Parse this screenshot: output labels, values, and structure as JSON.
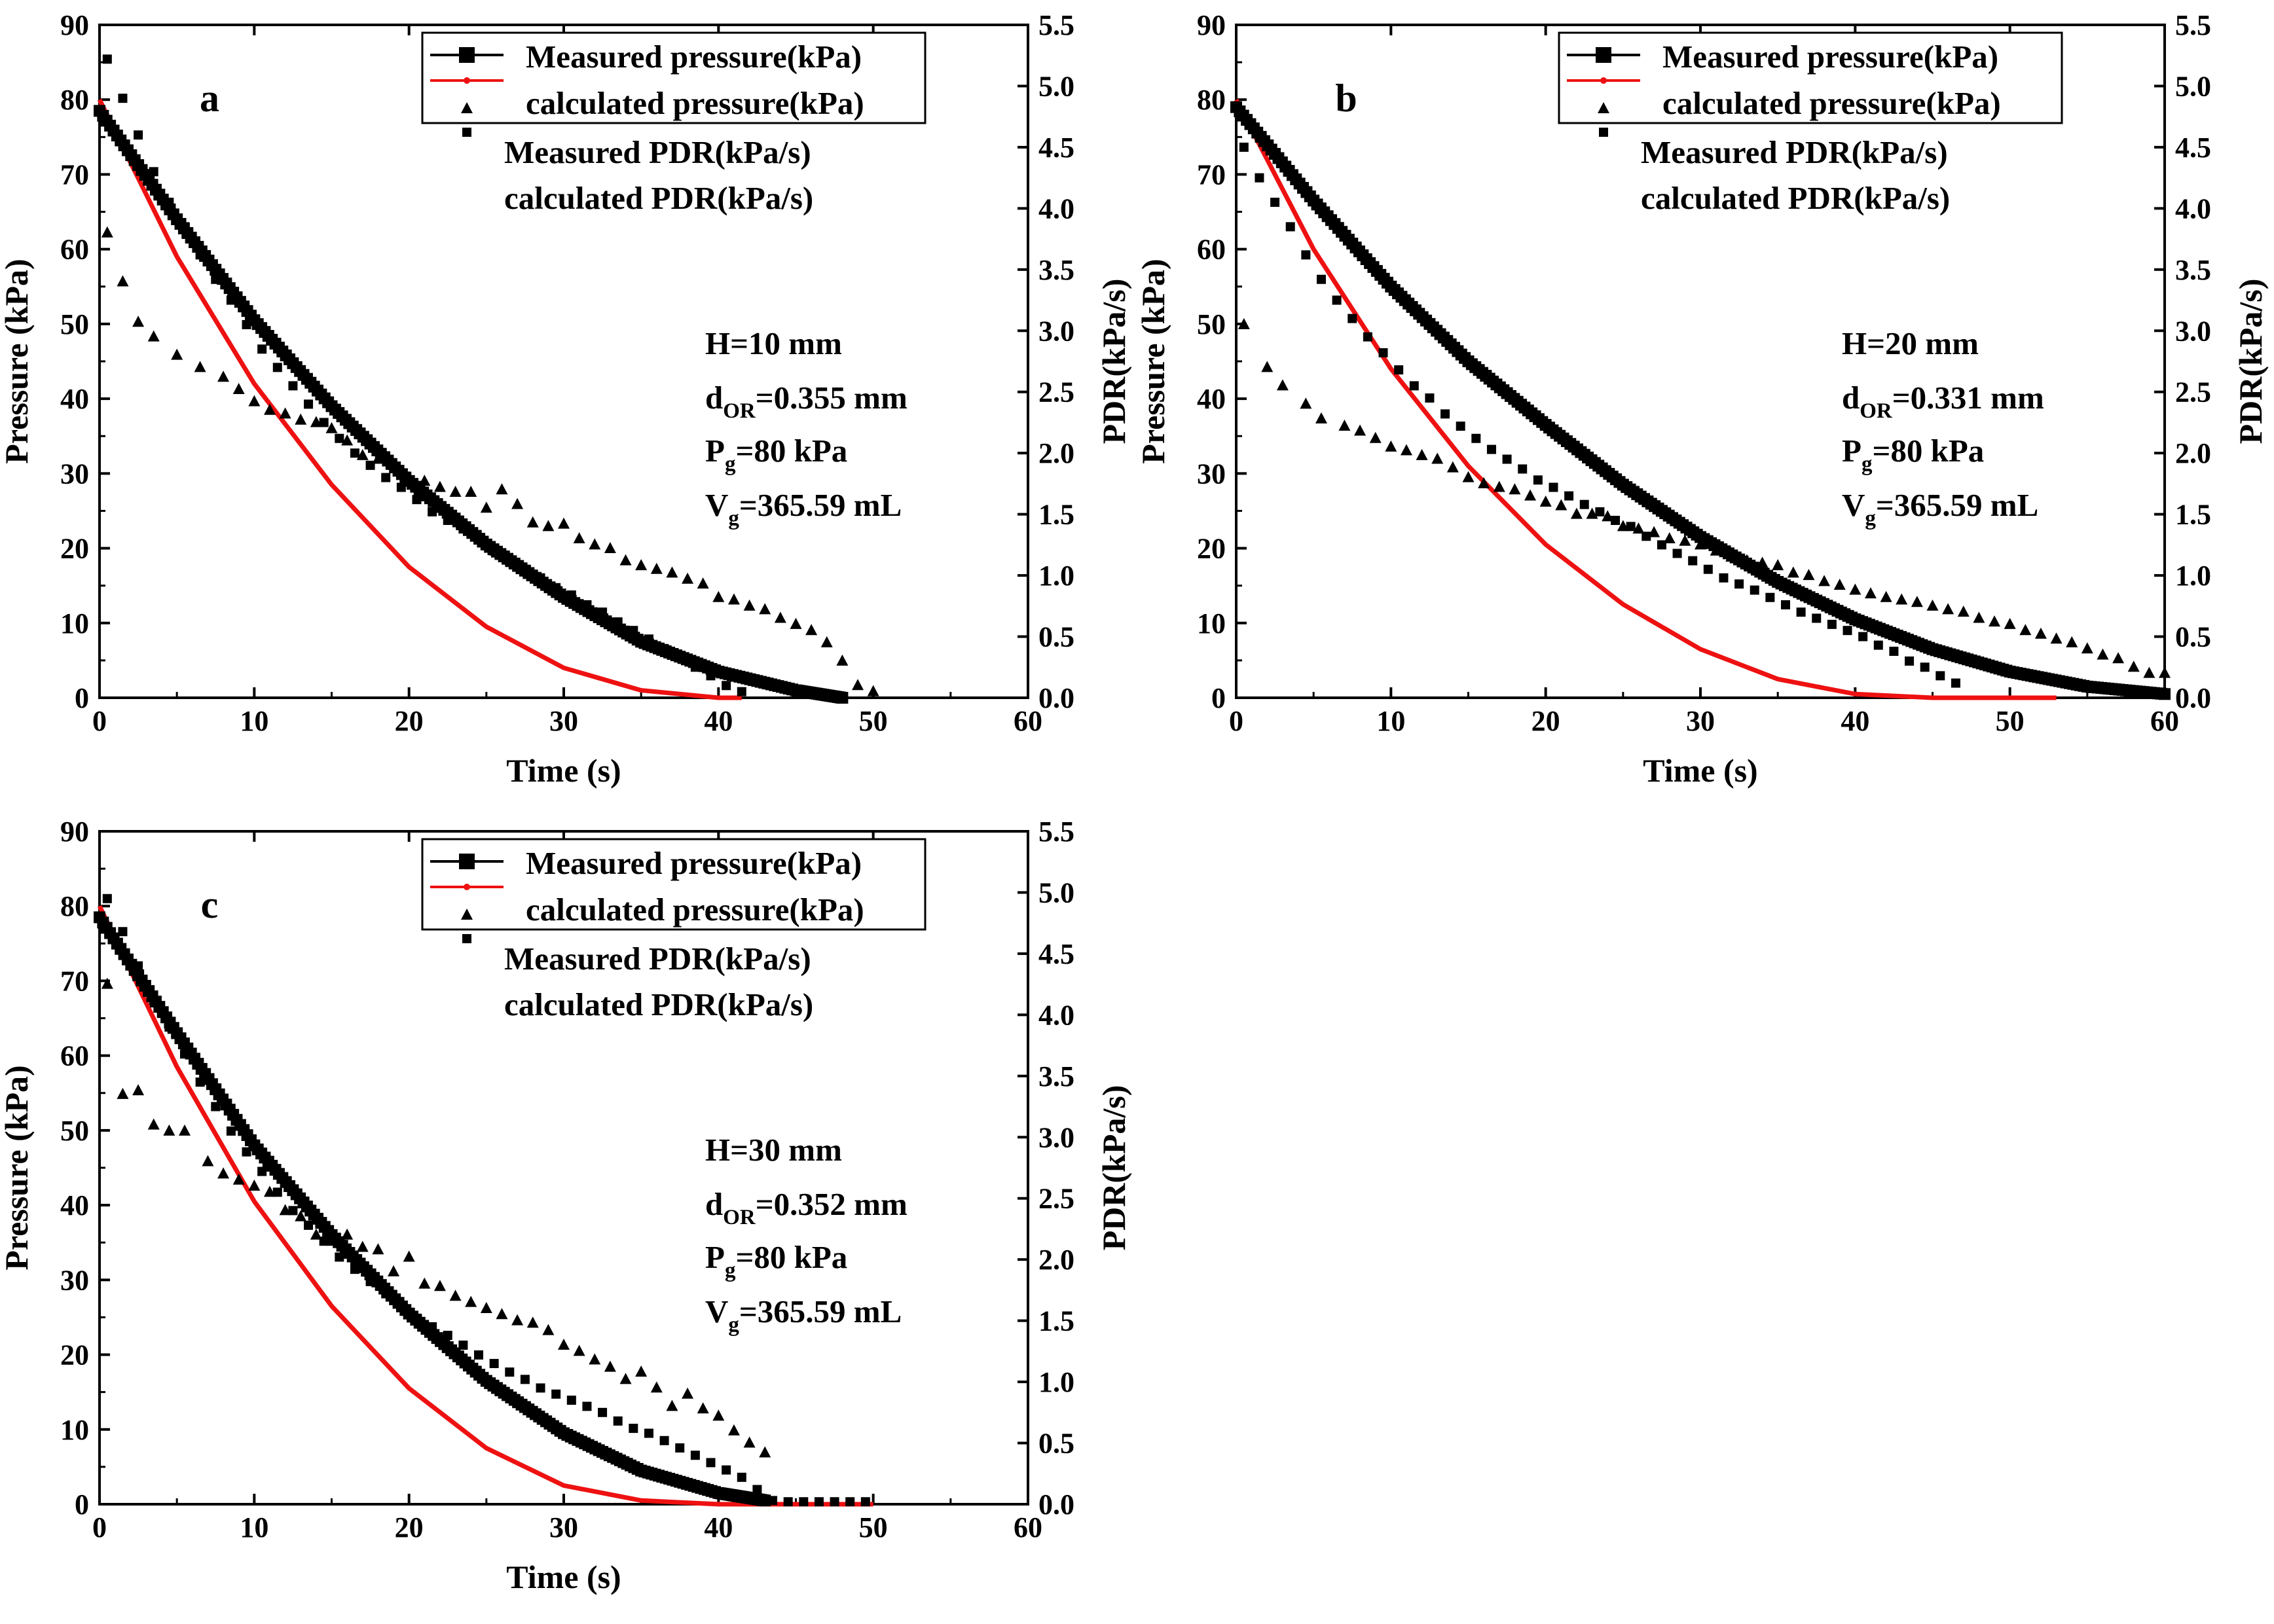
{
  "chart_data": [
    {
      "type": "line",
      "panel_label": "a",
      "xlabel": "Time (s)",
      "ylabel": "Pressure (kPa)",
      "y2label": "PDR(kPa/s)",
      "xlim": [
        0,
        60
      ],
      "ylim": [
        0,
        90
      ],
      "y2lim": [
        0,
        5.5
      ],
      "xticks": [
        0,
        10,
        20,
        30,
        40,
        50,
        60
      ],
      "yticks": [
        0,
        10,
        20,
        30,
        40,
        50,
        60,
        70,
        80,
        90
      ],
      "y2ticks": [
        "0.0",
        "0.5",
        "1.0",
        "1.5",
        "2.0",
        "2.5",
        "3.0",
        "3.5",
        "4.0",
        "4.5",
        "5.0",
        "5.5"
      ],
      "legend": {
        "position": "top-right",
        "entries": [
          "Measured pressure(kPa)",
          "calculated pressure(kPa)",
          "Measured PDR(kPa/s)",
          "calculated PDR(kPa/s)"
        ]
      },
      "params": [
        {
          "main": "H=10 mm",
          "sub": "",
          "rest": ""
        },
        {
          "main": "d",
          "sub": "OR",
          "rest": "=0.355 mm"
        },
        {
          "main": "P",
          "sub": "g",
          "rest": "=80 kPa"
        },
        {
          "main": "V",
          "sub": "g",
          "rest": "=365.59 mL"
        }
      ],
      "series": [
        {
          "name": "Measured pressure(kPa)",
          "axis": "left",
          "x": [
            0,
            5,
            10,
            15,
            20,
            25,
            30,
            35,
            40,
            45,
            48
          ],
          "y": [
            78.5,
            64,
            50.5,
            39,
            29,
            20.5,
            13.5,
            7.5,
            3.5,
            1,
            0
          ]
        },
        {
          "name": "calculated pressure(kPa)",
          "axis": "left",
          "x": [
            0,
            5,
            10,
            15,
            20,
            25,
            30,
            35,
            40,
            41.5
          ],
          "y": [
            80,
            59,
            42,
            28.5,
            17.5,
            9.5,
            4,
            1,
            0,
            0
          ]
        },
        {
          "name": "Measured PDR(kPa/s)",
          "axis": "right",
          "x": [
            0.5,
            1.5,
            2.5,
            3.5,
            5,
            6.5,
            8,
            9,
            10,
            11,
            12,
            13,
            14,
            15,
            16,
            17,
            18,
            19,
            20,
            21,
            22,
            23,
            24,
            25,
            26,
            27,
            28,
            29,
            30,
            31,
            32,
            33,
            34,
            35,
            36,
            37,
            38,
            39,
            40,
            41,
            42,
            43,
            44,
            45,
            46,
            47,
            48,
            49,
            50
          ],
          "y": [
            3.8,
            3.4,
            3.07,
            2.95,
            2.8,
            2.7,
            2.62,
            2.52,
            2.42,
            2.35,
            2.32,
            2.27,
            2.25,
            2.2,
            2.1,
            1.98,
            1.95,
            1.9,
            1.8,
            1.77,
            1.72,
            1.68,
            1.68,
            1.55,
            1.7,
            1.58,
            1.43,
            1.4,
            1.42,
            1.3,
            1.25,
            1.22,
            1.12,
            1.08,
            1.05,
            1.02,
            0.97,
            0.93,
            0.82,
            0.8,
            0.75,
            0.72,
            0.65,
            0.6,
            0.55,
            0.45,
            0.3,
            0.1,
            0.05
          ]
        },
        {
          "name": "calculated PDR(kPa/s)",
          "axis": "right",
          "x": [
            0.5,
            1.5,
            2.5,
            3.5,
            4.5,
            5.5,
            6.5,
            7.5,
            8.5,
            9.5,
            10.5,
            11.5,
            12.5,
            13.5,
            14.5,
            15.5,
            16.5,
            17.5,
            18.5,
            19.5,
            20.5,
            21.5,
            22.5,
            23.5,
            24.5,
            25.5,
            26.5,
            27.5,
            28.5,
            29.5,
            30.5,
            31.5,
            32.5,
            33.5,
            34.5,
            35.5,
            36.5,
            37.5,
            38.5,
            39.5,
            40.5,
            41.5
          ],
          "y": [
            5.22,
            4.9,
            4.6,
            4.3,
            4.05,
            3.85,
            3.62,
            3.42,
            3.25,
            3.05,
            2.85,
            2.7,
            2.55,
            2.4,
            2.25,
            2.12,
            2.0,
            1.9,
            1.8,
            1.72,
            1.62,
            1.52,
            1.45,
            1.38,
            1.3,
            1.2,
            1.12,
            1.05,
            0.98,
            0.9,
            0.84,
            0.76,
            0.7,
            0.62,
            0.55,
            0.48,
            0.4,
            0.33,
            0.25,
            0.18,
            0.1,
            0.05
          ]
        }
      ]
    },
    {
      "type": "line",
      "panel_label": "b",
      "xlabel": "Time (s)",
      "ylabel": "Pressure (kPa)",
      "y2label": "PDR(kPa/s)",
      "xlim": [
        0,
        60
      ],
      "ylim": [
        0,
        90
      ],
      "y2lim": [
        0,
        5.5
      ],
      "xticks": [
        0,
        10,
        20,
        30,
        40,
        50,
        60
      ],
      "yticks": [
        0,
        10,
        20,
        30,
        40,
        50,
        60,
        70,
        80,
        90
      ],
      "y2ticks": [
        "0.0",
        "0.5",
        "1.0",
        "1.5",
        "2.0",
        "2.5",
        "3.0",
        "3.5",
        "4.0",
        "4.5",
        "5.0",
        "5.5"
      ],
      "legend": {
        "position": "top-right",
        "entries": [
          "Measured pressure(kPa)",
          "calculated pressure(kPa)",
          "Measured PDR(kPa/s)",
          "calculated PDR(kPa/s)"
        ]
      },
      "params": [
        {
          "main": "H=20 mm",
          "sub": "",
          "rest": ""
        },
        {
          "main": "d",
          "sub": "OR",
          "rest": "=0.331 mm"
        },
        {
          "main": "P",
          "sub": "g",
          "rest": "=80 kPa"
        },
        {
          "main": "V",
          "sub": "g",
          "rest": "=365.59 mL"
        }
      ],
      "series": [
        {
          "name": "Measured pressure(kPa)",
          "axis": "left",
          "x": [
            0,
            5,
            10,
            15,
            20,
            25,
            30,
            35,
            40,
            45,
            50,
            55,
            60
          ],
          "y": [
            79,
            66.5,
            55,
            45,
            36.5,
            28.5,
            21.5,
            15.5,
            10.5,
            6.5,
            3.5,
            1.5,
            0.5
          ]
        },
        {
          "name": "calculated pressure(kPa)",
          "axis": "left",
          "x": [
            0,
            5,
            10,
            15,
            20,
            25,
            30,
            35,
            40,
            45,
            48,
            53
          ],
          "y": [
            80,
            60,
            44,
            31,
            20.5,
            12.5,
            6.5,
            2.5,
            0.5,
            0,
            0,
            0
          ]
        },
        {
          "name": "Measured PDR(kPa/s)",
          "axis": "right",
          "x": [
            0.5,
            2,
            3,
            4.5,
            5.5,
            7,
            8,
            9,
            10,
            11,
            12,
            13,
            14,
            15,
            16,
            17,
            18,
            19,
            20,
            21,
            22,
            23,
            24,
            25,
            26,
            27,
            28,
            29,
            30,
            31,
            32,
            33,
            34,
            35,
            36,
            37,
            38,
            39,
            40,
            41,
            42,
            43,
            44,
            45,
            46,
            47,
            48,
            49,
            50,
            51,
            52,
            53,
            54,
            55,
            56,
            57,
            58,
            59,
            60
          ],
          "y": [
            3.05,
            2.7,
            2.55,
            2.4,
            2.28,
            2.22,
            2.18,
            2.12,
            2.05,
            2.02,
            1.98,
            1.95,
            1.88,
            1.8,
            1.75,
            1.72,
            1.7,
            1.65,
            1.6,
            1.57,
            1.5,
            1.5,
            1.48,
            1.4,
            1.38,
            1.35,
            1.3,
            1.28,
            1.25,
            1.2,
            1.15,
            1.12,
            1.1,
            1.08,
            1.02,
            1,
            0.95,
            0.92,
            0.88,
            0.85,
            0.82,
            0.8,
            0.78,
            0.75,
            0.72,
            0.7,
            0.65,
            0.62,
            0.6,
            0.55,
            0.52,
            0.48,
            0.45,
            0.4,
            0.35,
            0.32,
            0.25,
            0.2,
            0.2
          ]
        },
        {
          "name": "calculated PDR(kPa/s)",
          "axis": "right",
          "x": [
            0.5,
            1.5,
            2.5,
            3.5,
            4.5,
            5.5,
            6.5,
            7.5,
            8.5,
            9.5,
            10.5,
            11.5,
            12.5,
            13.5,
            14.5,
            15.5,
            16.5,
            17.5,
            18.5,
            19.5,
            20.5,
            21.5,
            22.5,
            23.5,
            24.5,
            25.5,
            26.5,
            27.5,
            28.5,
            29.5,
            30.5,
            31.5,
            32.5,
            33.5,
            34.5,
            35.5,
            36.5,
            37.5,
            38.5,
            39.5,
            40.5,
            41.5,
            42.5,
            43.5,
            44.5,
            45.5,
            46.5
          ],
          "y": [
            4.5,
            4.25,
            4.05,
            3.85,
            3.62,
            3.42,
            3.25,
            3.1,
            2.95,
            2.82,
            2.68,
            2.55,
            2.45,
            2.32,
            2.22,
            2.12,
            2.03,
            1.95,
            1.87,
            1.78,
            1.72,
            1.65,
            1.58,
            1.52,
            1.45,
            1.4,
            1.32,
            1.25,
            1.18,
            1.12,
            1.05,
            0.98,
            0.93,
            0.88,
            0.82,
            0.76,
            0.7,
            0.65,
            0.6,
            0.55,
            0.5,
            0.43,
            0.38,
            0.3,
            0.25,
            0.18,
            0.12
          ]
        }
      ]
    },
    {
      "type": "line",
      "panel_label": "c",
      "xlabel": "Time (s)",
      "ylabel": "Pressure (kPa)",
      "y2label": "PDR(kPa/s)",
      "xlim": [
        0,
        60
      ],
      "ylim": [
        0,
        90
      ],
      "y2lim": [
        0,
        5.5
      ],
      "xticks": [
        0,
        10,
        20,
        30,
        40,
        50,
        60
      ],
      "yticks": [
        0,
        10,
        20,
        30,
        40,
        50,
        60,
        70,
        80,
        90
      ],
      "y2ticks": [
        "0.0",
        "0.5",
        "1.0",
        "1.5",
        "2.0",
        "2.5",
        "3.0",
        "3.5",
        "4.0",
        "4.5",
        "5.0",
        "5.5"
      ],
      "legend": {
        "position": "top-right",
        "entries": [
          "Measured pressure(kPa)",
          "calculated pressure(kPa)",
          "Measured PDR(kPa/s)",
          "calculated PDR(kPa/s)"
        ]
      },
      "params": [
        {
          "main": "H=30 mm",
          "sub": "",
          "rest": ""
        },
        {
          "main": "d",
          "sub": "OR",
          "rest": "=0.352 mm"
        },
        {
          "main": "P",
          "sub": "g",
          "rest": "=80 kPa"
        },
        {
          "main": "V",
          "sub": "g",
          "rest": "=365.59 mL"
        }
      ],
      "series": [
        {
          "name": "Measured pressure(kPa)",
          "axis": "left",
          "x": [
            0,
            5,
            10,
            15,
            20,
            25,
            30,
            35,
            40,
            43
          ],
          "y": [
            78.5,
            63,
            48,
            36,
            25.5,
            16.5,
            9.5,
            4.5,
            1.5,
            0.5
          ]
        },
        {
          "name": "calculated pressure(kPa)",
          "axis": "left",
          "x": [
            0,
            5,
            10,
            15,
            20,
            25,
            30,
            35,
            40,
            42,
            50
          ],
          "y": [
            80,
            58.5,
            40.5,
            26.5,
            15.5,
            7.5,
            2.5,
            0.5,
            0,
            0,
            0
          ]
        },
        {
          "name": "Measured PDR(kPa/s)",
          "axis": "right",
          "x": [
            0.5,
            1.5,
            2.5,
            3.5,
            4.5,
            5.5,
            7,
            8,
            9,
            10,
            11,
            12,
            13,
            14,
            15,
            16,
            17,
            18,
            19,
            20,
            21,
            22,
            23,
            24,
            25,
            26,
            27,
            28,
            29,
            30,
            31,
            32,
            33,
            34,
            35,
            36,
            37,
            38,
            39,
            40,
            41,
            42,
            43
          ],
          "y": [
            4.25,
            3.35,
            3.38,
            3.1,
            3.05,
            3.05,
            2.8,
            2.7,
            2.65,
            2.6,
            2.55,
            2.4,
            2.35,
            2.2,
            2.15,
            2.2,
            2.1,
            2.08,
            1.9,
            2.02,
            1.8,
            1.78,
            1.7,
            1.65,
            1.6,
            1.55,
            1.5,
            1.48,
            1.42,
            1.3,
            1.25,
            1.18,
            1.12,
            1.02,
            1.08,
            0.95,
            0.8,
            0.9,
            0.78,
            0.72,
            0.6,
            0.5,
            0.42
          ]
        },
        {
          "name": "calculated PDR(kPa/s)",
          "axis": "right",
          "x": [
            0.5,
            1.5,
            2.5,
            3.5,
            4.5,
            5.5,
            6.5,
            7.5,
            8.5,
            9.5,
            10.5,
            11.5,
            12.5,
            13.5,
            14.5,
            15.5,
            16.5,
            17.5,
            18.5,
            19.5,
            20.5,
            21.5,
            22.5,
            23.5,
            24.5,
            25.5,
            26.5,
            27.5,
            28.5,
            29.5,
            30.5,
            31.5,
            32.5,
            33.5,
            34.5,
            35.5,
            36.5,
            37.5,
            38.5,
            39.5,
            40.5,
            41.5,
            42.5,
            43.5,
            44.5,
            45.5,
            46.5,
            47.5,
            48.5,
            49.5
          ],
          "y": [
            4.95,
            4.68,
            4.4,
            4.12,
            3.9,
            3.68,
            3.45,
            3.25,
            3.05,
            2.88,
            2.72,
            2.55,
            2.4,
            2.28,
            2.15,
            2.02,
            1.92,
            1.82,
            1.72,
            1.62,
            1.52,
            1.45,
            1.38,
            1.3,
            1.22,
            1.15,
            1.08,
            1.02,
            0.95,
            0.9,
            0.85,
            0.8,
            0.75,
            0.68,
            0.62,
            0.58,
            0.52,
            0.46,
            0.4,
            0.34,
            0.28,
            0.22,
            0.12,
            0.03,
            0.02,
            0.02,
            0.02,
            0.02,
            0.02,
            0.02
          ]
        }
      ]
    }
  ]
}
